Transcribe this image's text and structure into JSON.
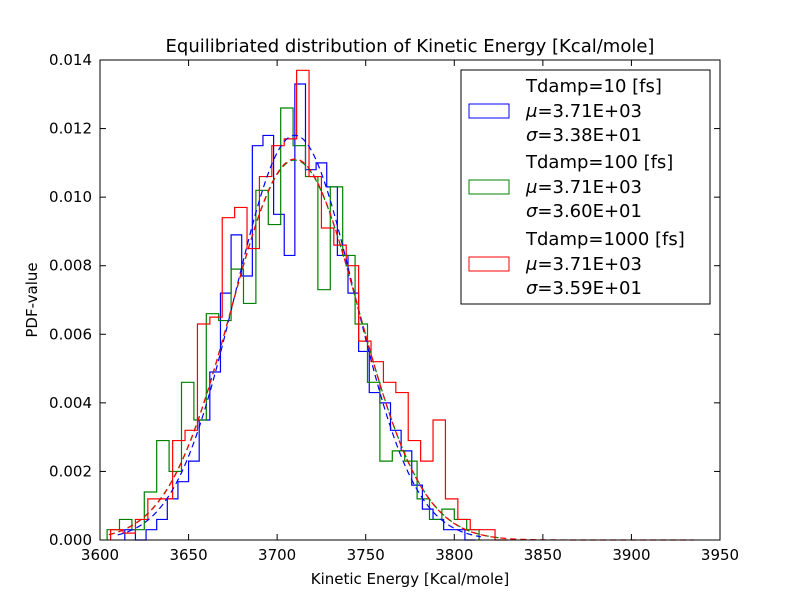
{
  "chart_data": {
    "type": "histogram",
    "title": "Equilibriated distribution of Kinetic Energy [Kcal/mole]",
    "xlabel": "Kinetic Energy [Kcal/mole]",
    "ylabel": "PDF-value",
    "xlim": [
      3600,
      3950
    ],
    "ylim": [
      0,
      0.014
    ],
    "xticks": [
      3600,
      3650,
      3700,
      3750,
      3800,
      3850,
      3900,
      3950
    ],
    "yticks": [
      0.0,
      0.002,
      0.004,
      0.006,
      0.008,
      0.01,
      0.012,
      0.014
    ],
    "ytick_labels": [
      "0.000",
      "0.002",
      "0.004",
      "0.006",
      "0.008",
      "0.010",
      "0.012",
      "0.014"
    ],
    "grid": false,
    "legend_position": "top-right",
    "series": [
      {
        "name": "Tdamp=10 [fs]",
        "mu_label": "=3.71E+03",
        "sigma_label": "=3.38E+01",
        "color": "#0000ff",
        "mu": 3710,
        "sigma": 33.8,
        "fit_range": [
          3610,
          3815
        ],
        "bin_edges": [
          3614,
          3620,
          3626,
          3632,
          3638,
          3644,
          3650,
          3656,
          3662,
          3668,
          3674,
          3680,
          3686,
          3692,
          3698,
          3704,
          3710,
          3716,
          3722,
          3728,
          3734,
          3740,
          3746,
          3752,
          3758,
          3764,
          3770,
          3776,
          3782,
          3788,
          3794,
          3800,
          3806,
          3812
        ],
        "density": [
          0.0003,
          0,
          0.0003,
          0.0006,
          0.0012,
          0.0017,
          0.0023,
          0.0035,
          0.0049,
          0.0072,
          0.0089,
          0.0077,
          0.0115,
          0.0118,
          0.0095,
          0.0083,
          0.0133,
          0.0108,
          0.011,
          0.0103,
          0.0083,
          0.0072,
          0.0055,
          0.0043,
          0.004,
          0.0032,
          0.0026,
          0.0016,
          0.0009,
          0.0006,
          0.0003,
          0.0003,
          0
        ]
      },
      {
        "name": "Tdamp=100 [fs]",
        "mu_label": "=3.71E+03",
        "sigma_label": "=3.60E+01",
        "color": "#008000",
        "mu": 3710,
        "sigma": 36.0,
        "fit_range": [
          3605,
          3825
        ],
        "bin_edges": [
          3604,
          3611,
          3618,
          3625,
          3632,
          3639,
          3646,
          3653,
          3660,
          3667,
          3674,
          3681,
          3688,
          3695,
          3702,
          3709,
          3716,
          3723,
          3730,
          3737,
          3744,
          3751,
          3758,
          3765,
          3772,
          3779,
          3786,
          3793,
          3800,
          3807,
          3814
        ],
        "density": [
          0.0003,
          0.0006,
          0.0003,
          0.0014,
          0.0029,
          0.002,
          0.0046,
          0.0035,
          0.0066,
          0.0064,
          0.0079,
          0.0069,
          0.0102,
          0.0092,
          0.0126,
          0.0115,
          0.0106,
          0.0073,
          0.0103,
          0.0083,
          0.0063,
          0.0046,
          0.0023,
          0.0026,
          0.0023,
          0.0012,
          0.0006,
          0.0009,
          0.0006,
          0.0003
        ]
      },
      {
        "name": "Tdamp=1000 [fs]",
        "mu_label": "=3.71E+03",
        "sigma_label": "=3.59E+01",
        "color": "#ff0000",
        "mu": 3710,
        "sigma": 35.9,
        "fit_range": [
          3605,
          3935
        ],
        "bin_edges": [
          3606,
          3613,
          3620,
          3627,
          3634,
          3641,
          3648,
          3655,
          3662,
          3669,
          3676,
          3683,
          3690,
          3697,
          3704,
          3711,
          3718,
          3725,
          3732,
          3739,
          3746,
          3753,
          3760,
          3767,
          3774,
          3781,
          3788,
          3795,
          3802,
          3809,
          3816,
          3823,
          3830
        ],
        "density": [
          0.0003,
          0.0002,
          0.0006,
          0.0012,
          0.0012,
          0.0029,
          0.0032,
          0.0063,
          0.0065,
          0.0094,
          0.0097,
          0.0085,
          0.0106,
          0.0115,
          0.0117,
          0.0137,
          0.0106,
          0.0091,
          0.0086,
          0.008,
          0.0058,
          0.0052,
          0.0046,
          0.0043,
          0.0029,
          0.0023,
          0.0035,
          0.0012,
          0.0006,
          0.0003,
          0.0003,
          0
        ]
      }
    ]
  }
}
